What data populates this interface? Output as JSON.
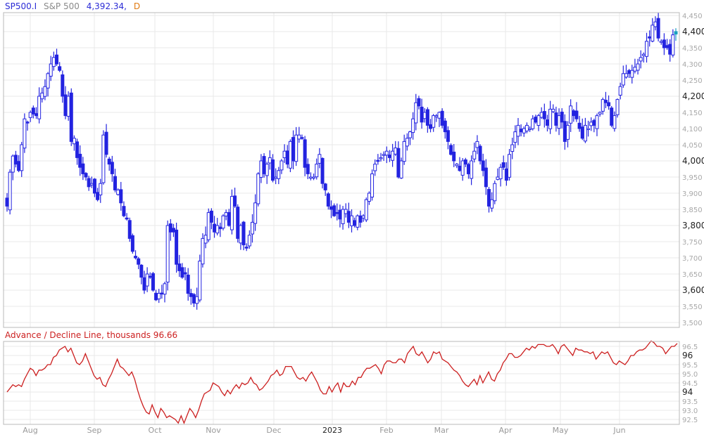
{
  "header": {
    "symbol": "SP500.I",
    "name": "S&P 500",
    "last_price": "4,392.34,",
    "frequency": "D"
  },
  "indicator": {
    "title": "Advance / Decline Line, thousands 96.66"
  },
  "colors": {
    "candle": "#2323e0",
    "last_candle": "#1aa0c0",
    "ad_line": "#cc1f1f",
    "grid": "#e8e8e8",
    "frame": "#b8b8b8"
  },
  "chart_data": [
    {
      "type": "candlestick",
      "title": "SP500.I S&P 500 4,392.34, D",
      "xlabel": "",
      "ylabel": "",
      "ylim": [
        3490,
        4460
      ],
      "y_ticks": [
        3500,
        3550,
        3600,
        3650,
        3700,
        3750,
        3800,
        3850,
        3900,
        3950,
        4000,
        4050,
        4100,
        4150,
        4200,
        4250,
        4300,
        4350,
        4400,
        4450
      ],
      "y_tick_labels": [
        "3,500",
        "3,550",
        "3,600",
        "3,650",
        "3,700",
        "3,750",
        "3,800",
        "3,850",
        "3,900",
        "3,950",
        "4,000",
        "4,050",
        "4,100",
        "4,150",
        "4,200",
        "4,250",
        "4,300",
        "4,350",
        "4,400",
        "4,450"
      ],
      "y_major_ticks": [
        "3,600",
        "3,800",
        "4,000",
        "4,200",
        "4,400"
      ],
      "x_tick_labels": [
        "Aug",
        "Sep",
        "Oct",
        "Nov",
        "Dec",
        "2023",
        "Feb",
        "Mar",
        "Apr",
        "May",
        "Jun"
      ],
      "x_major_tick": "2023",
      "last_value": 4392.34,
      "closes_approx": [
        3860,
        3965,
        4015,
        3990,
        3970,
        4050,
        4130,
        4120,
        4150,
        4145,
        4140,
        4200,
        4210,
        4230,
        4270,
        4300,
        4320,
        4300,
        4280,
        4200,
        4140,
        4200,
        4060,
        4070,
        4010,
        3980,
        3960,
        3950,
        3920,
        3930,
        3900,
        3880,
        3930,
        4080,
        4020,
        3990,
        3960,
        3910,
        3910,
        3870,
        3830,
        3820,
        3760,
        3720,
        3700,
        3680,
        3640,
        3600,
        3650,
        3640,
        3600,
        3570,
        3590,
        3590,
        3620,
        3800,
        3780,
        3780,
        3680,
        3660,
        3640,
        3650,
        3590,
        3580,
        3560,
        3580,
        3690,
        3760,
        3770,
        3840,
        3810,
        3780,
        3800,
        3790,
        3830,
        3840,
        3800,
        3890,
        3860,
        3760,
        3800,
        3740,
        3730,
        3770,
        3810,
        3870,
        3960,
        4000,
        3960,
        3990,
        4010,
        3940,
        3950,
        3970,
        4000,
        4030,
        3990,
        4060,
        4000,
        4080,
        4080,
        4070,
        3980,
        3960,
        3950,
        3950,
        3990,
        4020,
        3930,
        3910,
        3860,
        3850,
        3830,
        3840,
        3820,
        3850,
        3850,
        3810,
        3830,
        3800,
        3830,
        3810,
        3830,
        3880,
        3900,
        3960,
        3990,
        4000,
        4010,
        4020,
        4030,
        4010,
        4030,
        4040,
        3950,
        4000,
        4060,
        4070,
        4090,
        4130,
        4180,
        4170,
        4120,
        4150,
        4110,
        4100,
        4140,
        4140,
        4150,
        4110,
        4090,
        4060,
        4020,
        4000,
        3990,
        3970,
        4000,
        3990,
        3960,
        4000,
        4030,
        4060,
        4000,
        3970,
        3920,
        3860,
        3880,
        3930,
        3950,
        3980,
        3980,
        3940,
        4020,
        4050,
        4090,
        4110,
        4090,
        4100,
        4110,
        4100,
        4130,
        4120,
        4140,
        4150,
        4130,
        4110,
        4160,
        4160,
        4110,
        4140,
        4120,
        4060,
        4110,
        4170,
        4140,
        4130,
        4100,
        4070,
        4110,
        4100,
        4120,
        4110,
        4140,
        4150,
        4190,
        4180,
        4170,
        4110,
        4140,
        4190,
        4230,
        4270,
        4270,
        4270,
        4280,
        4290,
        4300,
        4320,
        4330,
        4370,
        4380,
        4420,
        4430,
        4380,
        4370,
        4350,
        4350,
        4330,
        4390,
        4392.34
      ]
    },
    {
      "type": "line",
      "title": "Advance / Decline Line, thousands 96.66",
      "ylim": [
        92.3,
        96.8
      ],
      "y_ticks": [
        92.5,
        93.0,
        93.5,
        94,
        94.5,
        95.0,
        95.5,
        96,
        96.5
      ],
      "y_tick_labels": [
        "92.5",
        "93.0",
        "93.5",
        "94",
        "94.5",
        "95.0",
        "95.5",
        "96",
        "96.5"
      ],
      "y_major_ticks": [
        "94",
        "96"
      ],
      "last_value": 96.66,
      "values_approx": [
        94.0,
        94.2,
        94.4,
        94.3,
        94.4,
        94.3,
        94.7,
        95.0,
        95.3,
        95.2,
        94.9,
        95.2,
        95.2,
        95.3,
        95.5,
        95.5,
        95.9,
        96.0,
        96.3,
        96.4,
        96.5,
        96.2,
        96.4,
        96.0,
        95.6,
        95.5,
        95.7,
        96.1,
        95.7,
        95.3,
        94.9,
        94.7,
        94.8,
        94.4,
        94.3,
        94.7,
        95.0,
        95.4,
        95.8,
        95.4,
        95.3,
        95.1,
        94.9,
        95.1,
        94.7,
        94.1,
        93.6,
        93.2,
        92.9,
        92.8,
        93.3,
        92.9,
        92.6,
        93.1,
        92.9,
        92.6,
        92.7,
        92.6,
        92.5,
        92.3,
        92.7,
        92.3,
        92.7,
        93.1,
        92.9,
        92.6,
        93.0,
        93.5,
        93.9,
        94.0,
        94.1,
        94.5,
        94.4,
        94.3,
        94.0,
        93.8,
        94.1,
        93.9,
        94.2,
        94.4,
        94.2,
        94.5,
        94.4,
        94.5,
        94.8,
        94.5,
        94.4,
        94.1,
        94.2,
        94.4,
        94.6,
        94.9,
        95.0,
        95.2,
        94.9,
        95.0,
        95.4,
        95.4,
        95.4,
        95.1,
        94.8,
        94.7,
        94.8,
        94.6,
        94.9,
        95.1,
        94.8,
        94.5,
        94.1,
        93.9,
        93.9,
        94.3,
        94.0,
        94.3,
        94.5,
        94.0,
        94.5,
        94.3,
        94.3,
        94.6,
        94.4,
        94.8,
        94.8,
        95.1,
        95.3,
        95.3,
        95.4,
        95.5,
        95.3,
        95.0,
        95.5,
        95.7,
        95.7,
        95.6,
        95.6,
        95.8,
        95.8,
        95.6,
        96.1,
        96.3,
        96.5,
        96.1,
        96.0,
        96.2,
        95.9,
        95.6,
        95.8,
        96.2,
        96.1,
        96.2,
        95.8,
        95.7,
        95.6,
        95.4,
        95.2,
        95.1,
        94.9,
        94.6,
        94.4,
        94.3,
        94.5,
        94.7,
        94.4,
        94.9,
        94.5,
        94.8,
        95.1,
        94.7,
        94.6,
        95.0,
        95.2,
        95.6,
        95.8,
        96.1,
        96.1,
        95.9,
        95.9,
        96.0,
        96.2,
        96.4,
        96.3,
        96.5,
        96.4,
        96.6,
        96.6,
        96.6,
        96.5,
        96.5,
        96.6,
        96.4,
        96.1,
        96.5,
        96.6,
        96.4,
        96.2,
        96.0,
        96.4,
        96.3,
        96.3,
        96.2,
        96.2,
        96.1,
        96.2,
        95.8,
        96.0,
        96.2,
        96.1,
        96.2,
        95.9,
        95.6,
        95.5,
        95.7,
        95.6,
        95.5,
        95.7,
        96.0,
        96.0,
        96.2,
        96.3,
        96.3,
        96.4,
        96.6,
        96.8,
        96.7,
        96.5,
        96.5,
        96.4,
        96.1,
        96.3,
        96.5,
        96.5,
        96.66
      ]
    }
  ]
}
